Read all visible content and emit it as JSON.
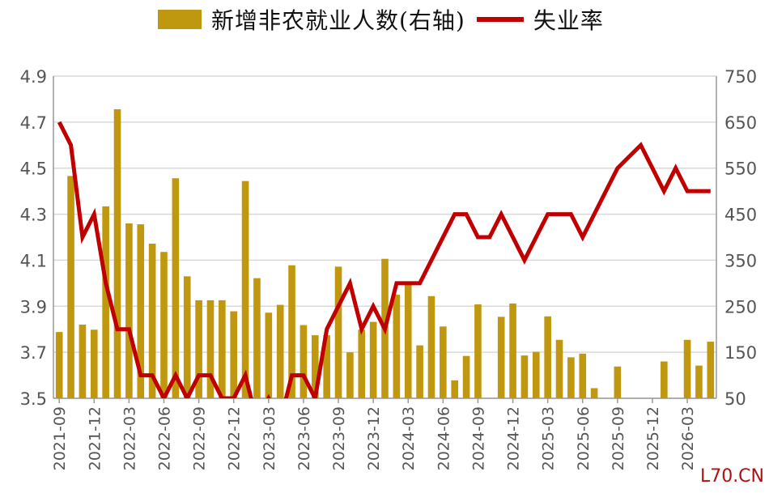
{
  "legend": {
    "bar_label": "新增非农就业人数(右轴)",
    "line_label": "失业率"
  },
  "watermark": "L70.CN",
  "colors": {
    "bar": "#c09810",
    "line": "#c00000",
    "grid": "#d9d9d9",
    "axis_text": "#555555"
  },
  "chart_data": {
    "type": "bar+line",
    "x": [
      "2021-09",
      "2021-10",
      "2021-11",
      "2021-12",
      "2022-01",
      "2022-02",
      "2022-03",
      "2022-04",
      "2022-05",
      "2022-06",
      "2022-07",
      "2022-08",
      "2022-09",
      "2022-10",
      "2022-11",
      "2022-12",
      "2023-01",
      "2023-02",
      "2023-03",
      "2023-04",
      "2023-05",
      "2023-06",
      "2023-07",
      "2023-08",
      "2023-09",
      "2023-10",
      "2023-11",
      "2023-12",
      "2024-01",
      "2024-02",
      "2024-03",
      "2024-04",
      "2024-05",
      "2024-06",
      "2024-07",
      "2024-08",
      "2024-09",
      "2024-10",
      "2024-11",
      "2024-12",
      "2025-01",
      "2025-02",
      "2025-03",
      "2025-04",
      "2025-05",
      "2025-06",
      "2025-07",
      "2025-08",
      "2025-09",
      "2025-10",
      "2025-11",
      "2025-12",
      "2026-01",
      "2026-02",
      "2026-03",
      "2026-04",
      "2026-05"
    ],
    "x_tick_labels": [
      "2021-09",
      "2021-12",
      "2022-03",
      "2022-06",
      "2022-09",
      "2022-12",
      "2023-03",
      "2023-06",
      "2023-09",
      "2023-12",
      "2024-03",
      "2024-06",
      "2024-09",
      "2024-12",
      "2025-03",
      "2025-06",
      "2025-09",
      "2025-12",
      "2026-03"
    ],
    "series": [
      {
        "name": "新增非农就业人数(右轴)",
        "type": "bar",
        "axis": "right",
        "values": [
          194,
          533,
          210,
          199,
          467,
          678,
          430,
          428,
          386,
          368,
          528,
          315,
          263,
          263,
          263,
          239,
          522,
          311,
          236,
          253,
          339,
          209,
          187,
          187,
          336,
          150,
          199,
          216,
          353,
          275,
          303,
          165,
          272,
          206,
          89,
          142,
          254,
          44,
          227,
          256,
          143,
          151,
          228,
          177,
          139,
          147,
          72,
          22,
          119,
          0,
          29,
          0,
          130,
          0,
          177,
          121,
          173
        ]
      },
      {
        "name": "失业率",
        "type": "line",
        "axis": "left",
        "values": [
          4.7,
          4.6,
          4.2,
          4.3,
          4.0,
          3.8,
          3.8,
          3.6,
          3.6,
          3.5,
          3.6,
          3.5,
          3.6,
          3.6,
          3.5,
          3.5,
          3.6,
          3.4,
          3.5,
          3.4,
          3.6,
          3.6,
          3.5,
          3.8,
          3.9,
          4.0,
          3.8,
          3.9,
          3.8,
          4.0,
          4.0,
          4.0,
          4.1,
          4.2,
          4.3,
          4.3,
          4.2,
          4.2,
          4.3,
          4.2,
          4.1,
          4.2,
          4.3,
          4.3,
          4.3,
          4.2,
          4.3,
          4.4,
          4.5,
          4.55,
          4.6,
          4.5,
          4.4,
          4.5,
          4.4,
          4.4,
          4.4
        ]
      }
    ],
    "left_axis": {
      "min": 3.5,
      "max": 4.9,
      "ticks": [
        "3.5",
        "3.7",
        "3.9",
        "4.1",
        "4.3",
        "4.5",
        "4.7",
        "4.9"
      ]
    },
    "right_axis": {
      "min": 50,
      "max": 750,
      "ticks": [
        "50",
        "150",
        "250",
        "350",
        "450",
        "550",
        "650",
        "750"
      ]
    },
    "grid": true,
    "legend_position": "top"
  }
}
